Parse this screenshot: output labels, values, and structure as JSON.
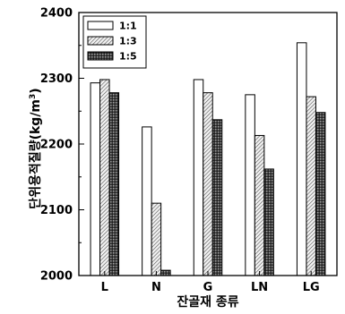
{
  "chart_data": {
    "type": "bar",
    "xlabel": "잔골재 종류",
    "ylabel": "단위용적질량(kg/m³)",
    "ylabel_main": "단위용적질량(kg/m",
    "ylabel_sup": "3",
    "ylabel_close": ")",
    "categories": [
      "L",
      "N",
      "G",
      "LN",
      "LG"
    ],
    "ylim": [
      2000,
      2400
    ],
    "yticks": [
      2000,
      2100,
      2200,
      2300,
      2400
    ],
    "ytick_labels": [
      "2000",
      "2100",
      "2200",
      "2300",
      "2400"
    ],
    "legend_position": "top-left",
    "series": [
      {
        "name": "1:1",
        "pattern": "white",
        "values": [
          2293,
          2226,
          2298,
          2275,
          2354
        ]
      },
      {
        "name": "1:3",
        "pattern": "light-hatch",
        "values": [
          2298,
          2110,
          2278,
          2213,
          2272
        ]
      },
      {
        "name": "1:5",
        "pattern": "dark-hatch",
        "values": [
          2278,
          2008,
          2237,
          2162,
          2248
        ]
      }
    ]
  }
}
